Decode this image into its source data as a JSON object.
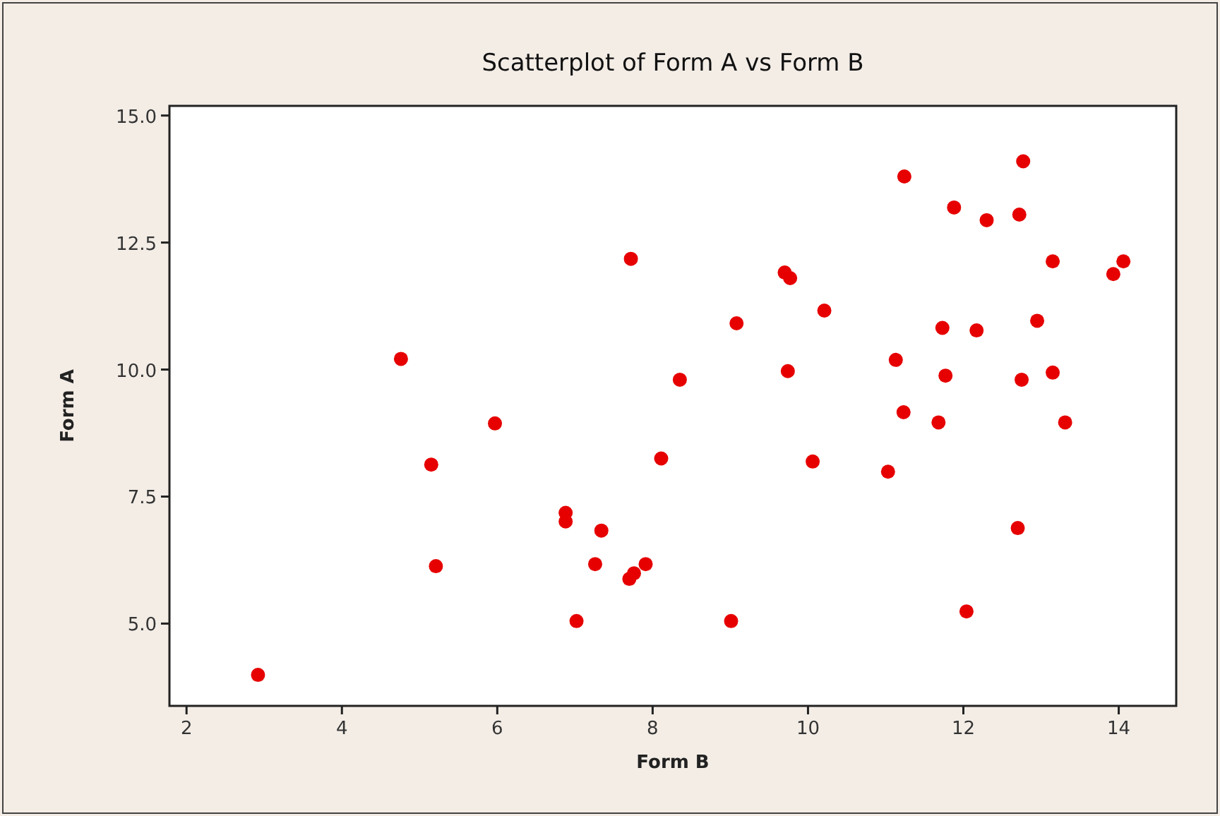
{
  "chart_data": {
    "type": "scatter",
    "title": "Scatterplot of Form A vs Form B",
    "xlabel": "Form B",
    "ylabel": "Form A",
    "xlim": [
      1.78,
      14.74
    ],
    "ylim": [
      3.38,
      15.19
    ],
    "xticks": [
      2,
      4,
      6,
      8,
      10,
      12,
      14
    ],
    "yticks": [
      {
        "value": 5,
        "label": "5.0"
      },
      {
        "value": 7.5,
        "label": "7.5"
      },
      {
        "value": 10,
        "label": "10.0"
      },
      {
        "value": 12.5,
        "label": "12.5"
      },
      {
        "value": 15,
        "label": "15.0"
      }
    ],
    "marker": "circle",
    "grid": false,
    "series": [
      {
        "color": "#e60000",
        "x": [
          2.92,
          4.76,
          5.15,
          5.21,
          5.97,
          6.88,
          6.88,
          7.34,
          7.26,
          7.02,
          7.72,
          7.7,
          7.76,
          7.91,
          8.11,
          8.35,
          9.01,
          9.08,
          9.7,
          9.77,
          9.74,
          10.21,
          10.06,
          11.03,
          11.13,
          11.23,
          11.24,
          11.68,
          11.73,
          11.77,
          11.88,
          12.04,
          12.17,
          12.3,
          12.7,
          12.72,
          12.77,
          12.75,
          12.95,
          13.15,
          13.15,
          13.31,
          13.93,
          14.06
        ],
        "values": [
          3.99,
          10.21,
          8.13,
          6.13,
          8.94,
          7.18,
          7.01,
          6.83,
          6.17,
          5.05,
          12.18,
          5.88,
          5.99,
          6.17,
          8.25,
          9.8,
          5.05,
          10.91,
          11.91,
          11.8,
          9.97,
          11.16,
          8.19,
          7.99,
          10.19,
          9.16,
          13.8,
          8.96,
          10.82,
          9.88,
          13.19,
          5.24,
          10.77,
          12.94,
          6.88,
          13.05,
          14.1,
          9.8,
          10.96,
          12.13,
          9.94,
          8.96,
          11.88,
          12.13
        ]
      }
    ]
  }
}
